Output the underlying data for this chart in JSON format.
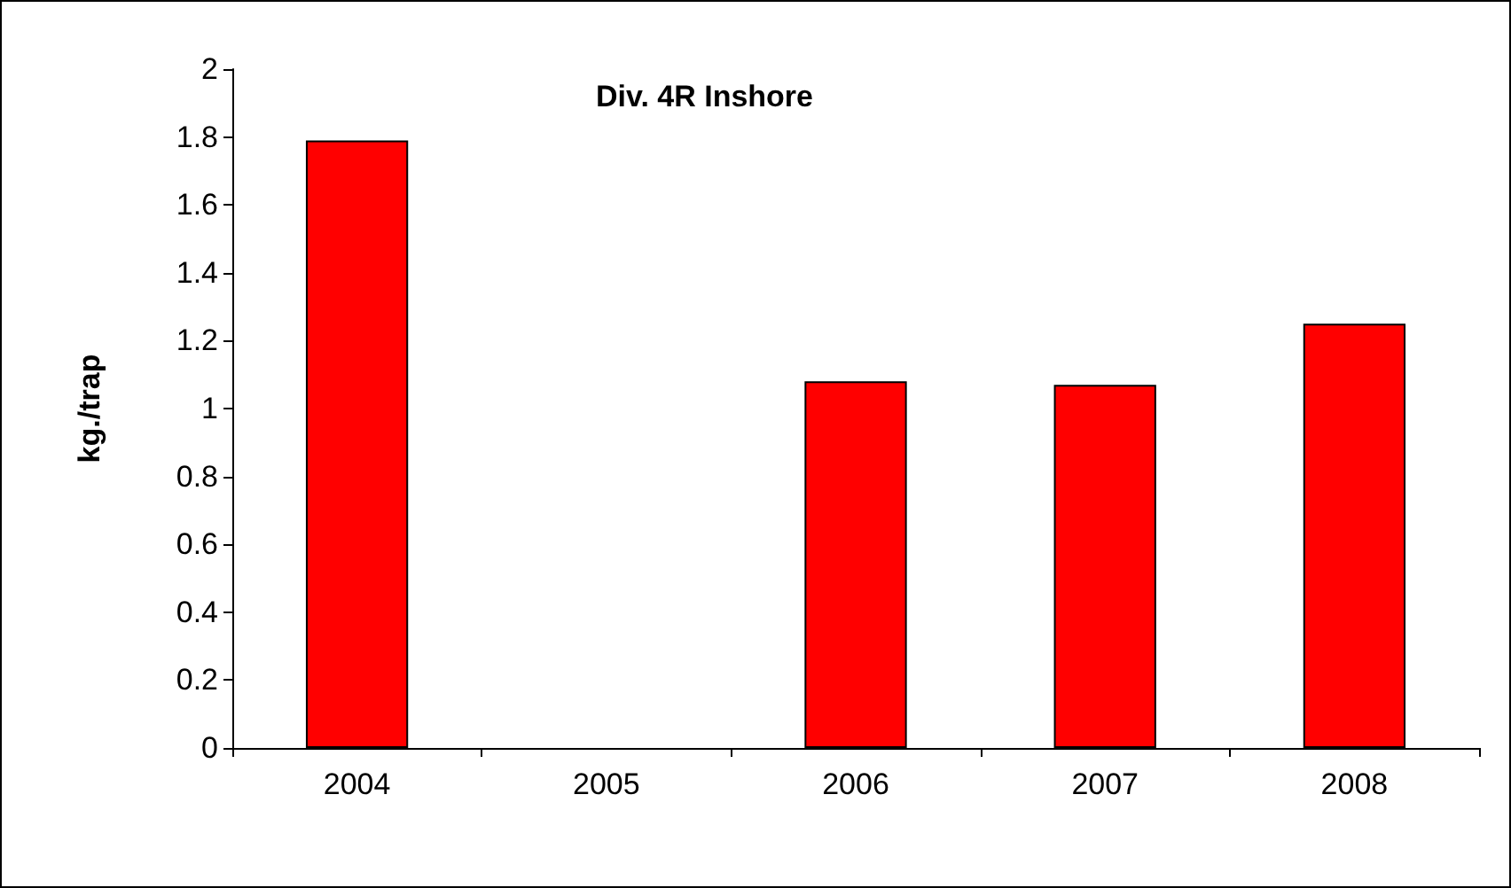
{
  "chart_data": {
    "type": "bar",
    "title": "Div. 4R Inshore",
    "ylabel": "kg./trap",
    "categories": [
      "2004",
      "2005",
      "2006",
      "2007",
      "2008"
    ],
    "values": [
      1.79,
      null,
      1.08,
      1.07,
      1.25
    ],
    "color": "#ff0000",
    "ylim": [
      0,
      2
    ],
    "yticks": [
      0,
      0.2,
      0.4,
      0.6,
      0.8,
      1,
      1.2,
      1.4,
      1.6,
      1.8,
      2
    ]
  }
}
